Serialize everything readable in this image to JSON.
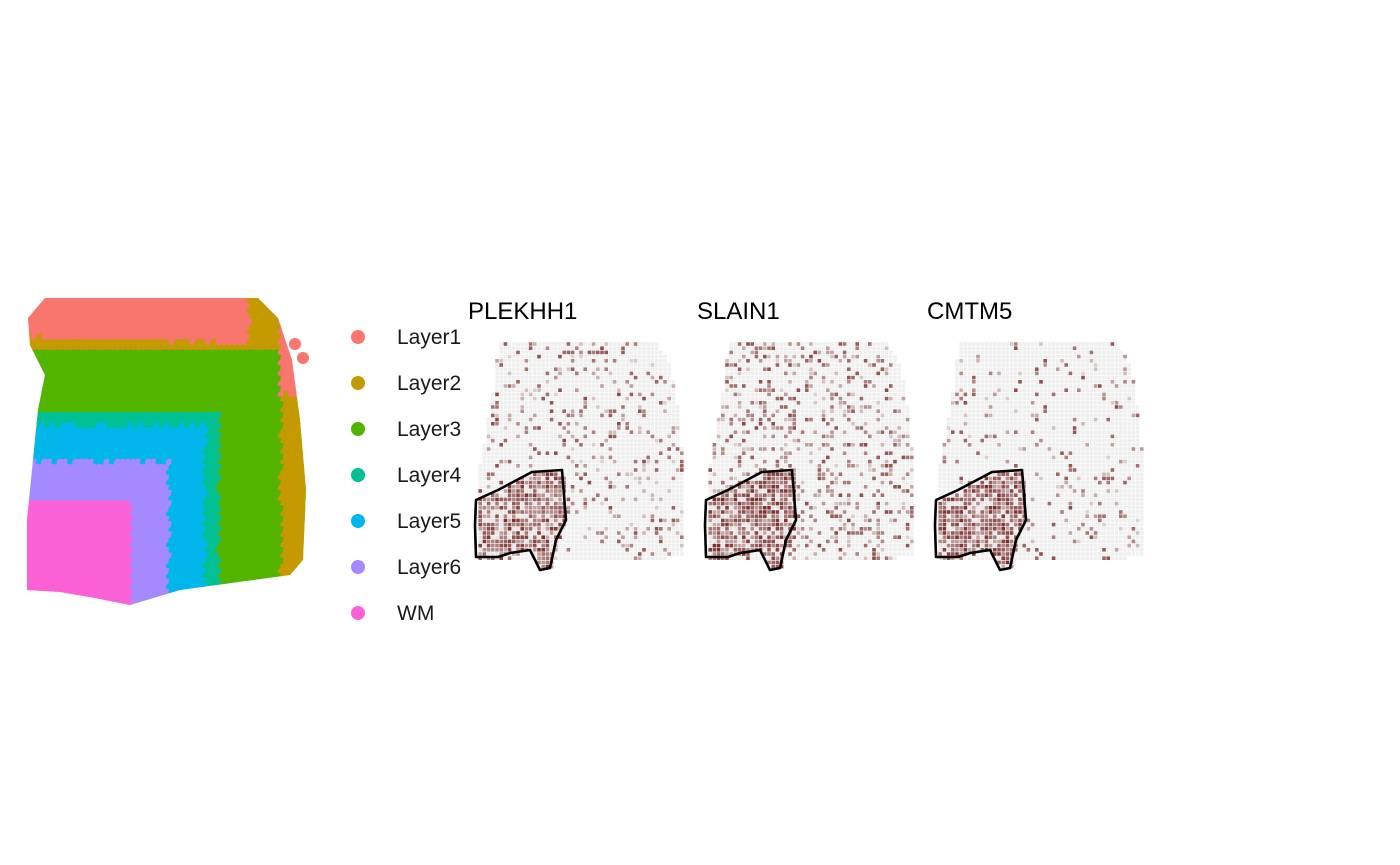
{
  "chart_data": [
    {
      "type": "scatter",
      "kind": "spatial-domain-map",
      "title": "",
      "legend": {
        "placement": "right",
        "entries": [
          {
            "label": "Layer1",
            "color": "#F8766D"
          },
          {
            "label": "Layer2",
            "color": "#C49A00"
          },
          {
            "label": "Layer3",
            "color": "#53B400"
          },
          {
            "label": "Layer4",
            "color": "#00C094"
          },
          {
            "label": "Layer5",
            "color": "#00B6EB"
          },
          {
            "label": "Layer6",
            "color": "#A58AFF"
          },
          {
            "label": "WM",
            "color": "#FB61D7"
          }
        ]
      },
      "axes_visible": false,
      "grid": false
    },
    {
      "type": "scatter",
      "kind": "spatial-expression-maps",
      "panels": [
        {
          "title": "PLEKHH1",
          "relative_density": 0.45
        },
        {
          "title": "SLAIN1",
          "relative_density": 0.75
        },
        {
          "title": "CMTM5",
          "relative_density": 0.3
        }
      ],
      "low_color": "#EFEFEF",
      "high_color": "#7A2E2A",
      "annotation": "black outline around the lower-left (WM) region in each panel",
      "axes_visible": false,
      "grid": false
    }
  ]
}
